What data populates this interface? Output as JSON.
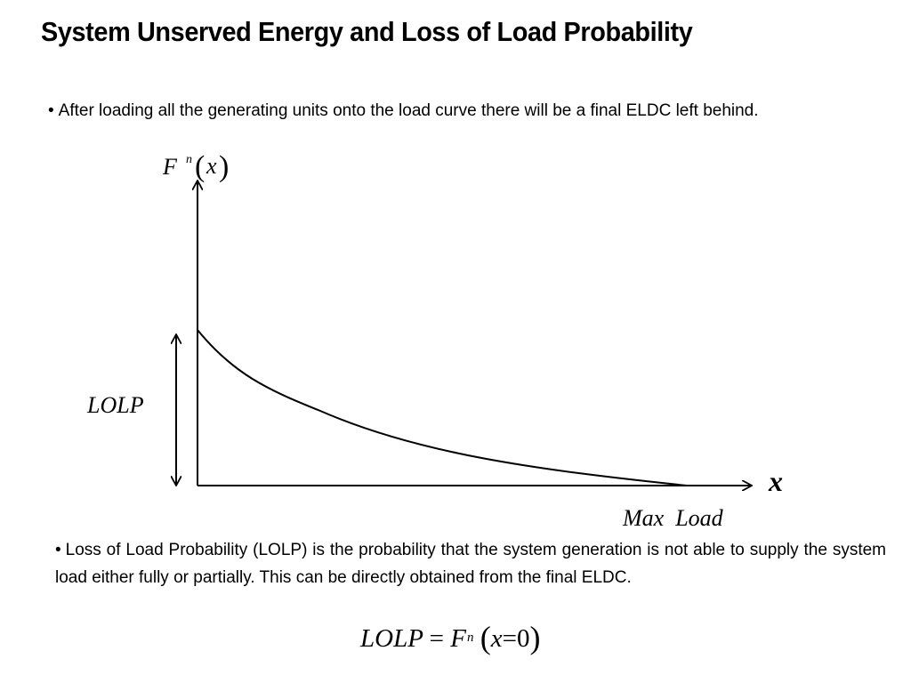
{
  "slide": {
    "title": "System Unserved Energy and Loss of Load Probability",
    "bullet_symbol": "•",
    "bullet1": "After loading all the generating units onto the load curve there will be a final ELDC left behind.",
    "bullet2": "Loss of Load Probability (LOLP) is the probability that the system generation is not able to supply the system load either fully or partially. This can be directly obtained from the final ELDC."
  },
  "diagram": {
    "y_axis_label_base": "F",
    "y_axis_label_sup": "n",
    "y_axis_label_arg": "x",
    "x_axis_label": "x",
    "lolp_label": "LOLP",
    "max_load_label": "Max  Load"
  },
  "formula": {
    "lhs": "LOLP",
    "equals": "=",
    "base": "F",
    "sup": "n",
    "arg": "x",
    "eq2": "=",
    "zero": "0"
  }
}
